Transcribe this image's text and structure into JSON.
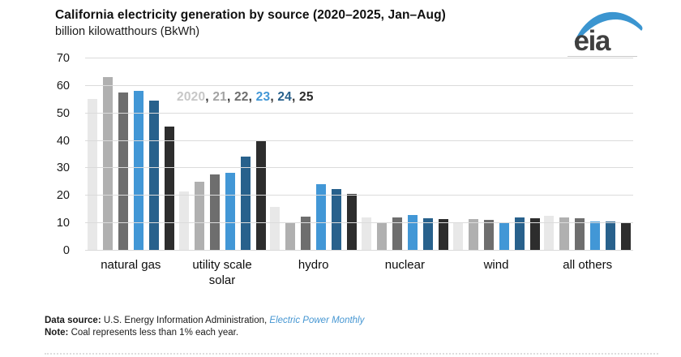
{
  "header": {
    "title": "California electricity generation by source (2020–2025, Jan–Aug)",
    "subtitle": "billion kilowatthours (BkWh)"
  },
  "logo": {
    "text": "eia",
    "swoosh_color": "#3b95d0",
    "text_color": "#3f3f3f"
  },
  "legend": {
    "separator": ", ",
    "items": [
      {
        "label": "2020",
        "color": "#c7c7c7"
      },
      {
        "label": "21",
        "color": "#a3a3a3"
      },
      {
        "label": "22",
        "color": "#6e6e6e"
      },
      {
        "label": "23",
        "color": "#4297d6"
      },
      {
        "label": "24",
        "color": "#28618c"
      },
      {
        "label": "25",
        "color": "#2b2b2b"
      }
    ]
  },
  "chart_data": {
    "type": "bar",
    "title": "California electricity generation by source (2020–2025, Jan–Aug)",
    "ylabel": "billion kilowatthours (BkWh)",
    "xlabel": "",
    "categories": [
      "natural gas",
      "utility scale solar",
      "hydro",
      "nuclear",
      "wind",
      "all others"
    ],
    "series": [
      {
        "name": "2020",
        "color": "#e8e8e8",
        "values": [
          55.2,
          21.6,
          15.9,
          12.2,
          10.3,
          12.7
        ]
      },
      {
        "name": "21",
        "color": "#b0b0b0",
        "values": [
          63.1,
          25.1,
          10.0,
          10.2,
          11.4,
          12.0
        ]
      },
      {
        "name": "22",
        "color": "#6e6e6e",
        "values": [
          57.6,
          27.8,
          12.5,
          12.1,
          11.2,
          11.8
        ]
      },
      {
        "name": "23",
        "color": "#4297d6",
        "values": [
          58.3,
          28.4,
          24.3,
          13.0,
          10.3,
          10.7
        ]
      },
      {
        "name": "24",
        "color": "#28618c",
        "values": [
          54.6,
          34.3,
          22.4,
          11.8,
          12.1,
          10.5
        ]
      },
      {
        "name": "25",
        "color": "#2d2d2d",
        "values": [
          45.3,
          39.9,
          20.7,
          11.5,
          11.8,
          10.3
        ]
      }
    ],
    "ylim": [
      0,
      70
    ],
    "yticks": [
      0,
      10,
      20,
      30,
      40,
      50,
      60,
      70
    ],
    "grid": "horizontal",
    "legend_position": "inside-top-left-as-text"
  },
  "footer": {
    "source_label": "Data source:",
    "source_text": " U.S. Energy Information Administration, ",
    "source_link": "Electric Power Monthly",
    "note_label": "Note:",
    "note_text": " Coal represents less than 1% each year."
  }
}
